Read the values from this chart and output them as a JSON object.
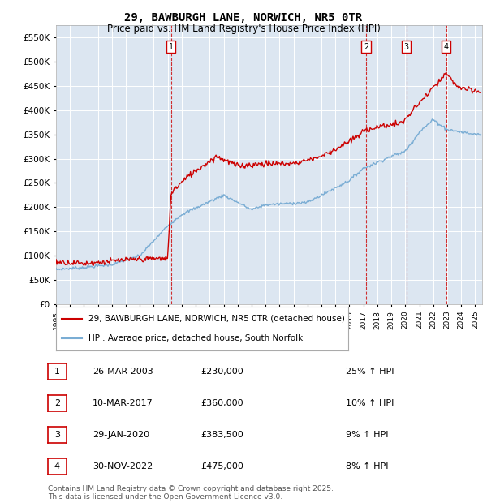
{
  "title": "29, BAWBURGH LANE, NORWICH, NR5 0TR",
  "subtitle": "Price paid vs. HM Land Registry's House Price Index (HPI)",
  "legend_line1": "29, BAWBURGH LANE, NORWICH, NR5 0TR (detached house)",
  "legend_line2": "HPI: Average price, detached house, South Norfolk",
  "footer": "Contains HM Land Registry data © Crown copyright and database right 2025.\nThis data is licensed under the Open Government Licence v3.0.",
  "transactions": [
    {
      "num": 1,
      "date": "26-MAR-2003",
      "price": "£230,000",
      "pct": "25% ↑ HPI"
    },
    {
      "num": 2,
      "date": "10-MAR-2017",
      "price": "£360,000",
      "pct": "10% ↑ HPI"
    },
    {
      "num": 3,
      "date": "29-JAN-2020",
      "price": "£383,500",
      "pct": "9% ↑ HPI"
    },
    {
      "num": 4,
      "date": "30-NOV-2022",
      "price": "£475,000",
      "pct": "8% ↑ HPI"
    }
  ],
  "transaction_years": [
    2003.23,
    2017.19,
    2020.08,
    2022.92
  ],
  "hpi_color": "#7aadd4",
  "price_color": "#cc0000",
  "background_color": "#dce6f1",
  "ylim": [
    0,
    575000
  ],
  "yticks": [
    0,
    50000,
    100000,
    150000,
    200000,
    250000,
    300000,
    350000,
    400000,
    450000,
    500000,
    550000
  ],
  "xlim_start": 1995.0,
  "xlim_end": 2025.5,
  "hpi_anchors_x": [
    1995,
    1997,
    1999,
    2001,
    2003,
    2004,
    2007,
    2009,
    2010,
    2013,
    2016,
    2017,
    2019,
    2020,
    2021,
    2022,
    2023,
    2024,
    2025
  ],
  "hpi_anchors_y": [
    72000,
    76000,
    82000,
    100000,
    162000,
    185000,
    225000,
    195000,
    205000,
    210000,
    255000,
    280000,
    305000,
    315000,
    355000,
    380000,
    360000,
    355000,
    350000
  ],
  "price_anchors_x": [
    1995.0,
    1997.0,
    1999.5,
    2001.0,
    2003.0,
    2003.23,
    2004.5,
    2006.5,
    2008.0,
    2010.0,
    2012.0,
    2014.0,
    2016.0,
    2017.0,
    2017.19,
    2018.5,
    2019.5,
    2020.0,
    2020.08,
    2021.0,
    2022.0,
    2022.92,
    2023.5,
    2024.0,
    2025.0
  ],
  "price_anchors_y": [
    88000,
    84000,
    90000,
    93000,
    95000,
    230000,
    265000,
    305000,
    285000,
    290000,
    290000,
    305000,
    335000,
    355000,
    360000,
    368000,
    372000,
    378000,
    383500,
    415000,
    445000,
    475000,
    455000,
    445000,
    438000
  ]
}
